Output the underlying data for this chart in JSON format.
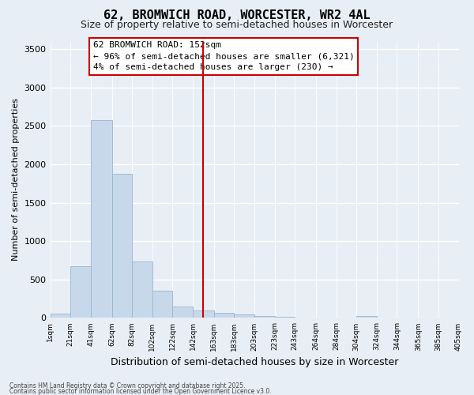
{
  "title1": "62, BROMWICH ROAD, WORCESTER, WR2 4AL",
  "title2": "Size of property relative to semi-detached houses in Worcester",
  "xlabel": "Distribution of semi-detached houses by size in Worcester",
  "ylabel": "Number of semi-detached properties",
  "annotation_line1": "62 BROMWICH ROAD: 152sqm",
  "annotation_line2": "← 96% of semi-detached houses are smaller (6,321)",
  "annotation_line3": "4% of semi-detached houses are larger (230) →",
  "footer1": "Contains HM Land Registry data © Crown copyright and database right 2025.",
  "footer2": "Contains public sector information licensed under the Open Government Licence v3.0.",
  "bar_edges": [
    1,
    21,
    41,
    62,
    82,
    102,
    122,
    142,
    163,
    183,
    203,
    223,
    243,
    264,
    284,
    304,
    324,
    344,
    365,
    385,
    405
  ],
  "bar_heights": [
    55,
    670,
    2580,
    1880,
    730,
    350,
    150,
    100,
    70,
    50,
    30,
    10,
    0,
    0,
    0,
    30,
    0,
    0,
    0,
    0
  ],
  "bar_color": "#c8d8eb",
  "bar_edge_color": "#9ab5cc",
  "vline_color": "#cc0000",
  "vline_x": 152,
  "ylim": [
    0,
    3600
  ],
  "yticks": [
    0,
    500,
    1000,
    1500,
    2000,
    2500,
    3000,
    3500
  ],
  "bg_color": "#e8eef5",
  "plot_bg_color": "#e8eef5",
  "grid_color": "#ffffff",
  "ann_edge_color": "#cc0000",
  "ann_face_color": "#ffffff",
  "title1_fontsize": 11,
  "title2_fontsize": 9,
  "tick_label_fontsize": 6.5,
  "ylabel_fontsize": 8,
  "xlabel_fontsize": 9,
  "ann_fontsize": 8,
  "footer_fontsize": 5.5,
  "tick_labels": [
    "1sqm",
    "21sqm",
    "41sqm",
    "62sqm",
    "82sqm",
    "102sqm",
    "122sqm",
    "142sqm",
    "163sqm",
    "183sqm",
    "203sqm",
    "223sqm",
    "243sqm",
    "264sqm",
    "284sqm",
    "304sqm",
    "324sqm",
    "344sqm",
    "365sqm",
    "385sqm",
    "405sqm"
  ]
}
